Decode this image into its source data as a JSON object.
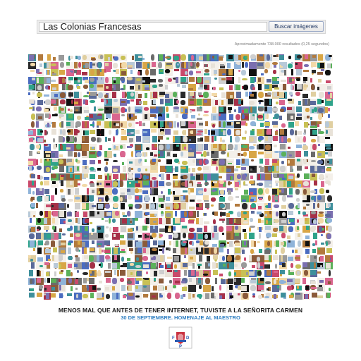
{
  "search": {
    "query": "Las Colonias Francesas",
    "button_label": "Buscar imágenes"
  },
  "results": {
    "count_text": "Aproximadamente 738.000 resultados (0,25 segundos)"
  },
  "mosaic": {
    "columns": 40,
    "rows": 33,
    "palette": [
      "#ffffff",
      "#f4f0ea",
      "#e8e2d8",
      "#111111",
      "#2a2a2a",
      "#5a6a9a",
      "#7b6fb0",
      "#3e8f9b",
      "#2fa38a",
      "#5bb15a",
      "#c8c055",
      "#d8a646",
      "#b27a3e",
      "#8a5a3a",
      "#d9668f",
      "#c94a6b",
      "#a63048",
      "#4b6cc0",
      "#8fb3d9",
      "#b8c9d8",
      "#cfcfcf",
      "#9a9a9a",
      "#6b6b6b",
      "#e0cfa0",
      "#f2d9a8"
    ]
  },
  "footer": {
    "title": "MENOS MAL QUE ANTES DE TENER INTERNET, TUVISTE A LA SEÑORITA CARMEN",
    "subtitle": "30 DE SEPTIEMBRE. HOMENAJE AL MAESTRO"
  },
  "logo": {
    "icon": "hand-shield-icon",
    "letters_left": "F",
    "letters_right": "D",
    "letters_bottom": "P"
  }
}
